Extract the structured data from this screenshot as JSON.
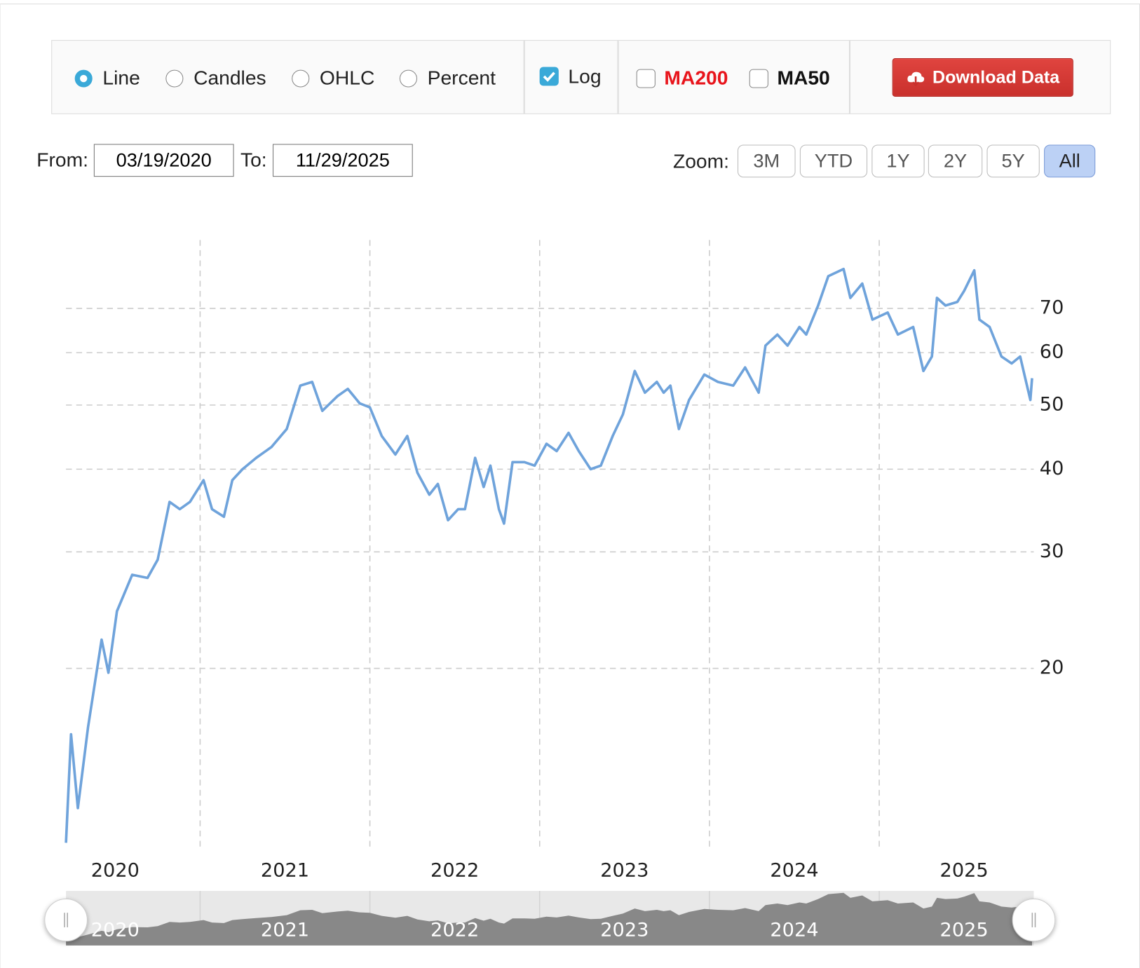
{
  "controls": {
    "chart_types": [
      "Line",
      "Candles",
      "OHLC",
      "Percent"
    ],
    "log": "Log",
    "ma200": "MA200",
    "ma50": "MA50",
    "download": "Download Data",
    "from_label": "From:",
    "from": "03/19/2020",
    "to_label": "To:",
    "to": "11/29/2025",
    "zoom_label": "Zoom:",
    "zoom": [
      "3M",
      "YTD",
      "1Y",
      "2Y",
      "5Y",
      "All"
    ]
  },
  "chart_data": {
    "type": "line",
    "color": "#6fa3db",
    "log_scale": true,
    "grid": true,
    "xlim": [
      2020.21,
      2025.91
    ],
    "xticks": [
      2020,
      2021,
      2022,
      2023,
      2024,
      2025
    ],
    "ylim": [
      10.65,
      88.8
    ],
    "yticks": [
      20,
      30,
      40,
      50,
      60,
      70
    ],
    "x": [
      2020.21,
      2020.24,
      2020.28,
      2020.34,
      2020.42,
      2020.46,
      2020.51,
      2020.6,
      2020.69,
      2020.75,
      2020.82,
      2020.88,
      2020.94,
      2021.02,
      2021.07,
      2021.14,
      2021.19,
      2021.25,
      2021.33,
      2021.42,
      2021.51,
      2021.59,
      2021.66,
      2021.72,
      2021.81,
      2021.87,
      2021.94,
      2022.0,
      2022.07,
      2022.15,
      2022.22,
      2022.28,
      2022.35,
      2022.4,
      2022.46,
      2022.52,
      2022.56,
      2022.62,
      2022.67,
      2022.71,
      2022.76,
      2022.79,
      2022.84,
      2022.91,
      2022.97,
      2023.04,
      2023.1,
      2023.17,
      2023.23,
      2023.3,
      2023.36,
      2023.43,
      2023.49,
      2023.56,
      2023.62,
      2023.69,
      2023.73,
      2023.77,
      2023.82,
      2023.88,
      2023.97,
      2024.05,
      2024.14,
      2024.21,
      2024.29,
      2024.33,
      2024.4,
      2024.46,
      2024.53,
      2024.57,
      2024.64,
      2024.7,
      2024.79,
      2024.83,
      2024.9,
      2024.96,
      2025.05,
      2025.11,
      2025.2,
      2025.26,
      2025.31,
      2025.34,
      2025.39,
      2025.46,
      2025.5,
      2025.56,
      2025.59,
      2025.65,
      2025.72,
      2025.78,
      2025.83,
      2025.86,
      2025.89,
      2025.9
    ],
    "values": [
      10.9,
      15.9,
      12.3,
      16.3,
      22.1,
      19.7,
      24.4,
      27.7,
      27.4,
      29.2,
      35.7,
      34.8,
      35.7,
      38.5,
      34.8,
      33.9,
      38.5,
      40.0,
      41.6,
      43.2,
      46.0,
      53.5,
      54.2,
      49.0,
      51.6,
      52.9,
      50.3,
      49.6,
      44.9,
      42.1,
      44.9,
      39.5,
      36.6,
      38.0,
      33.5,
      34.8,
      34.8,
      41.6,
      37.6,
      40.5,
      34.8,
      33.1,
      41.0,
      41.0,
      40.5,
      43.7,
      42.6,
      45.4,
      42.6,
      40.0,
      40.5,
      44.9,
      48.4,
      56.3,
      52.2,
      54.2,
      52.2,
      53.5,
      46.0,
      50.9,
      55.6,
      54.2,
      53.5,
      57.0,
      52.2,
      61.5,
      63.9,
      61.5,
      65.6,
      63.9,
      70.7,
      78.3,
      80.3,
      72.6,
      76.3,
      67.3,
      69.0,
      63.9,
      65.6,
      56.3,
      59.2,
      72.6,
      70.7,
      71.6,
      74.4,
      79.9,
      67.3,
      65.6,
      59.2,
      57.8,
      59.2,
      54.9,
      50.9,
      54.9
    ]
  }
}
